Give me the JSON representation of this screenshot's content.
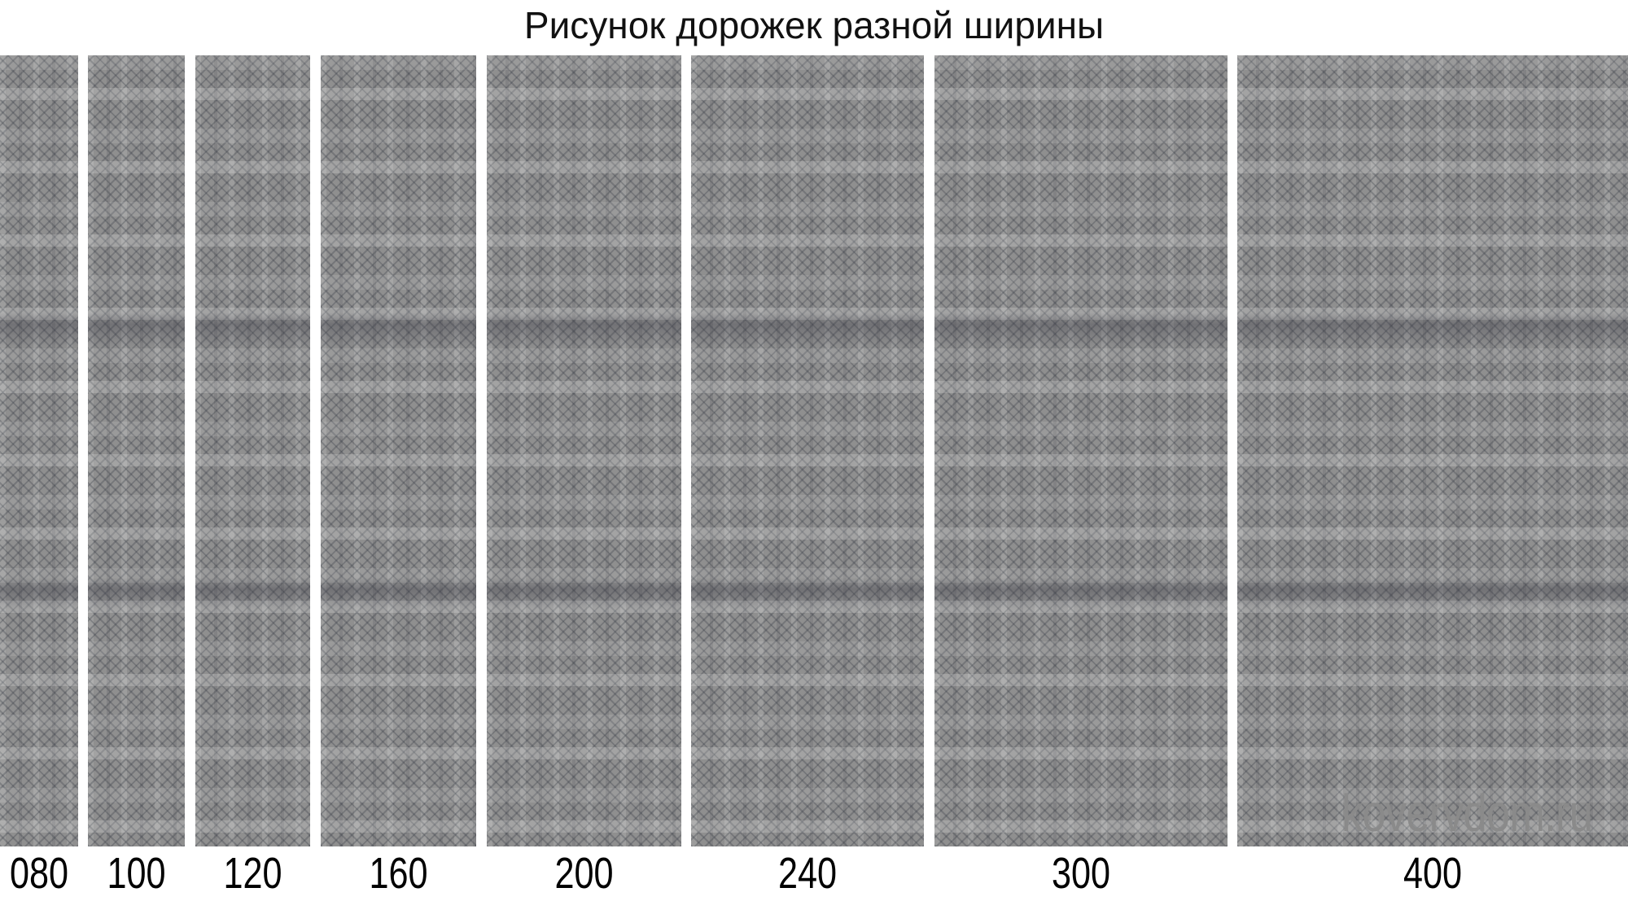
{
  "title": "Рисунок дорожек разной ширины",
  "runners": [
    {
      "width_label": "080"
    },
    {
      "width_label": "100"
    },
    {
      "width_label": "120"
    },
    {
      "width_label": "160"
    },
    {
      "width_label": "200"
    },
    {
      "width_label": "240"
    },
    {
      "width_label": "300"
    },
    {
      "width_label": "400"
    }
  ],
  "watermark": "kovervdom.ru"
}
